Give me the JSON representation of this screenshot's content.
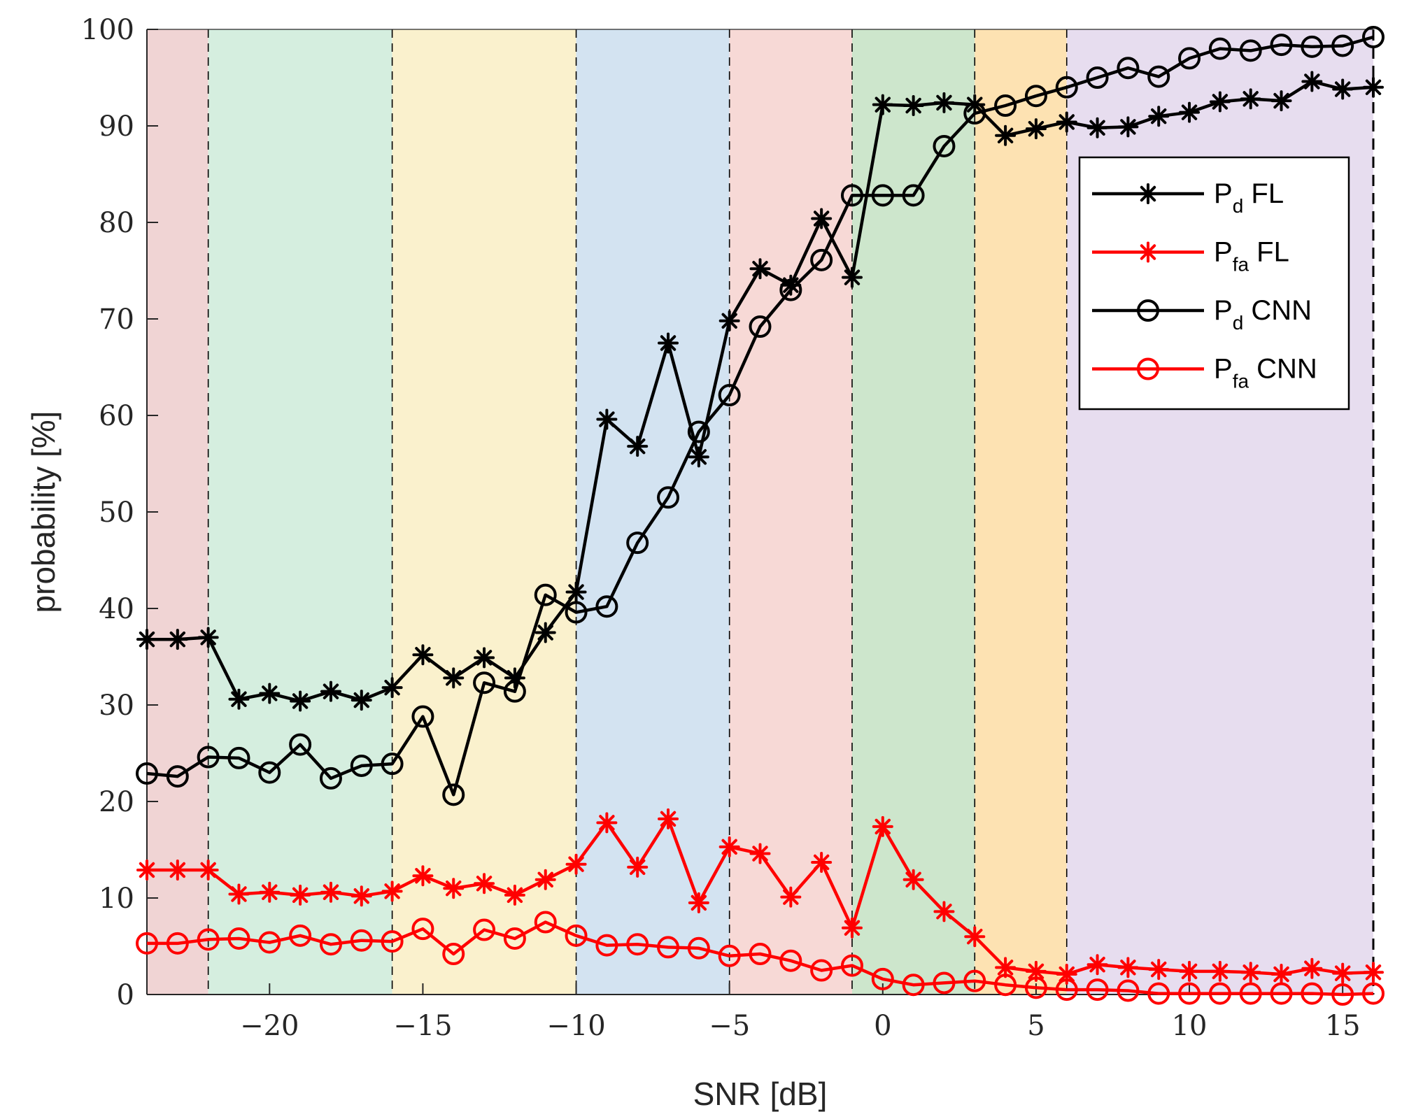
{
  "chart_data": {
    "type": "line",
    "title": "",
    "xlabel": "SNR [dB]",
    "ylabel": "probability [%]",
    "xlim": [
      -24,
      16
    ],
    "ylim": [
      0,
      100
    ],
    "xticks": [
      -20,
      -15,
      -10,
      -5,
      0,
      5,
      10,
      15
    ],
    "xtick_labels": [
      "−20",
      "−15",
      "−10",
      "−5",
      "0",
      "5",
      "10",
      "15"
    ],
    "yticks": [
      0,
      10,
      20,
      30,
      40,
      50,
      60,
      70,
      80,
      90,
      100
    ],
    "ytick_labels": [
      "0",
      "10",
      "20",
      "30",
      "40",
      "50",
      "60",
      "70",
      "80",
      "90",
      "100"
    ],
    "grid": false,
    "legend_position": "top-right",
    "background_bands": [
      {
        "from": -24,
        "to": -22,
        "color": "#f0d4d4"
      },
      {
        "from": -22,
        "to": -16,
        "color": "#d5eedf"
      },
      {
        "from": -16,
        "to": -10,
        "color": "#faf1cd"
      },
      {
        "from": -10,
        "to": -5,
        "color": "#d3e3f1"
      },
      {
        "from": -5,
        "to": -1,
        "color": "#f7d9d6"
      },
      {
        "from": -1,
        "to": 3,
        "color": "#cde6cc"
      },
      {
        "from": 3,
        "to": 6,
        "color": "#fde2b2"
      },
      {
        "from": 6,
        "to": 16,
        "color": "#e7ddef"
      }
    ],
    "band_boundaries": [
      -22,
      -16,
      -10,
      -5,
      -1,
      3,
      6,
      16
    ],
    "x": [
      -24,
      -23,
      -22,
      -21,
      -20,
      -19,
      -18,
      -17,
      -16,
      -15,
      -14,
      -13,
      -12,
      -11,
      -10,
      -9,
      -8,
      -7,
      -6,
      -5,
      -4,
      -3,
      -2,
      -1,
      0,
      1,
      2,
      3,
      4,
      5,
      6,
      7,
      8,
      9,
      10,
      11,
      12,
      13,
      14,
      15,
      16
    ],
    "series": [
      {
        "name": "Pd FL",
        "main": "P",
        "sub": "d",
        "suffix": " FL",
        "color": "#000000",
        "marker": "asterisk",
        "values": [
          36.8,
          36.8,
          37.0,
          30.6,
          31.2,
          30.4,
          31.4,
          30.5,
          31.8,
          35.2,
          32.8,
          34.9,
          32.8,
          37.5,
          41.7,
          59.6,
          56.8,
          67.5,
          55.7,
          69.8,
          75.2,
          73.5,
          80.4,
          74.3,
          92.2,
          92.1,
          92.4,
          92.2,
          89.0,
          89.7,
          90.4,
          89.8,
          89.9,
          91.0,
          91.4,
          92.5,
          92.8,
          92.6,
          94.6,
          93.8,
          94.0
        ]
      },
      {
        "name": "Pfa FL",
        "main": "P",
        "sub": "fa",
        "suffix": " FL",
        "color": "#ff0000",
        "marker": "asterisk",
        "values": [
          12.9,
          12.9,
          12.9,
          10.4,
          10.6,
          10.3,
          10.6,
          10.2,
          10.7,
          12.3,
          11.0,
          11.5,
          10.3,
          11.9,
          13.5,
          17.8,
          13.2,
          18.2,
          9.5,
          15.3,
          14.6,
          10.1,
          13.7,
          6.9,
          17.4,
          11.9,
          8.6,
          6.0,
          2.8,
          2.4,
          2.1,
          3.1,
          2.8,
          2.6,
          2.4,
          2.4,
          2.3,
          2.1,
          2.7,
          2.2,
          2.3
        ]
      },
      {
        "name": "Pd CNN",
        "main": "P",
        "sub": "d",
        "suffix": " CNN",
        "color": "#000000",
        "marker": "circle",
        "values": [
          22.9,
          22.6,
          24.6,
          24.5,
          23.0,
          25.9,
          22.4,
          23.7,
          23.9,
          28.8,
          20.7,
          32.3,
          31.4,
          41.4,
          39.6,
          40.2,
          46.8,
          51.5,
          58.3,
          62.1,
          69.2,
          73.0,
          76.1,
          82.8,
          82.8,
          82.8,
          87.9,
          91.3,
          92.1,
          93.1,
          94.0,
          95.0,
          96.0,
          95.1,
          97.0,
          98.0,
          97.8,
          98.4,
          98.2,
          98.3,
          99.2
        ]
      },
      {
        "name": "Pfa CNN",
        "main": "P",
        "sub": "fa",
        "suffix": " CNN",
        "color": "#ff0000",
        "marker": "circle",
        "values": [
          5.3,
          5.3,
          5.7,
          5.8,
          5.4,
          6.1,
          5.2,
          5.6,
          5.5,
          6.8,
          4.2,
          6.7,
          5.8,
          7.5,
          6.1,
          5.1,
          5.2,
          4.9,
          4.8,
          4.0,
          4.2,
          3.5,
          2.5,
          3.0,
          1.6,
          1.0,
          1.2,
          1.4,
          1.0,
          0.7,
          0.5,
          0.5,
          0.4,
          0.1,
          0.1,
          0.1,
          0.1,
          0.1,
          0.1,
          0.0,
          0.1
        ]
      }
    ]
  }
}
